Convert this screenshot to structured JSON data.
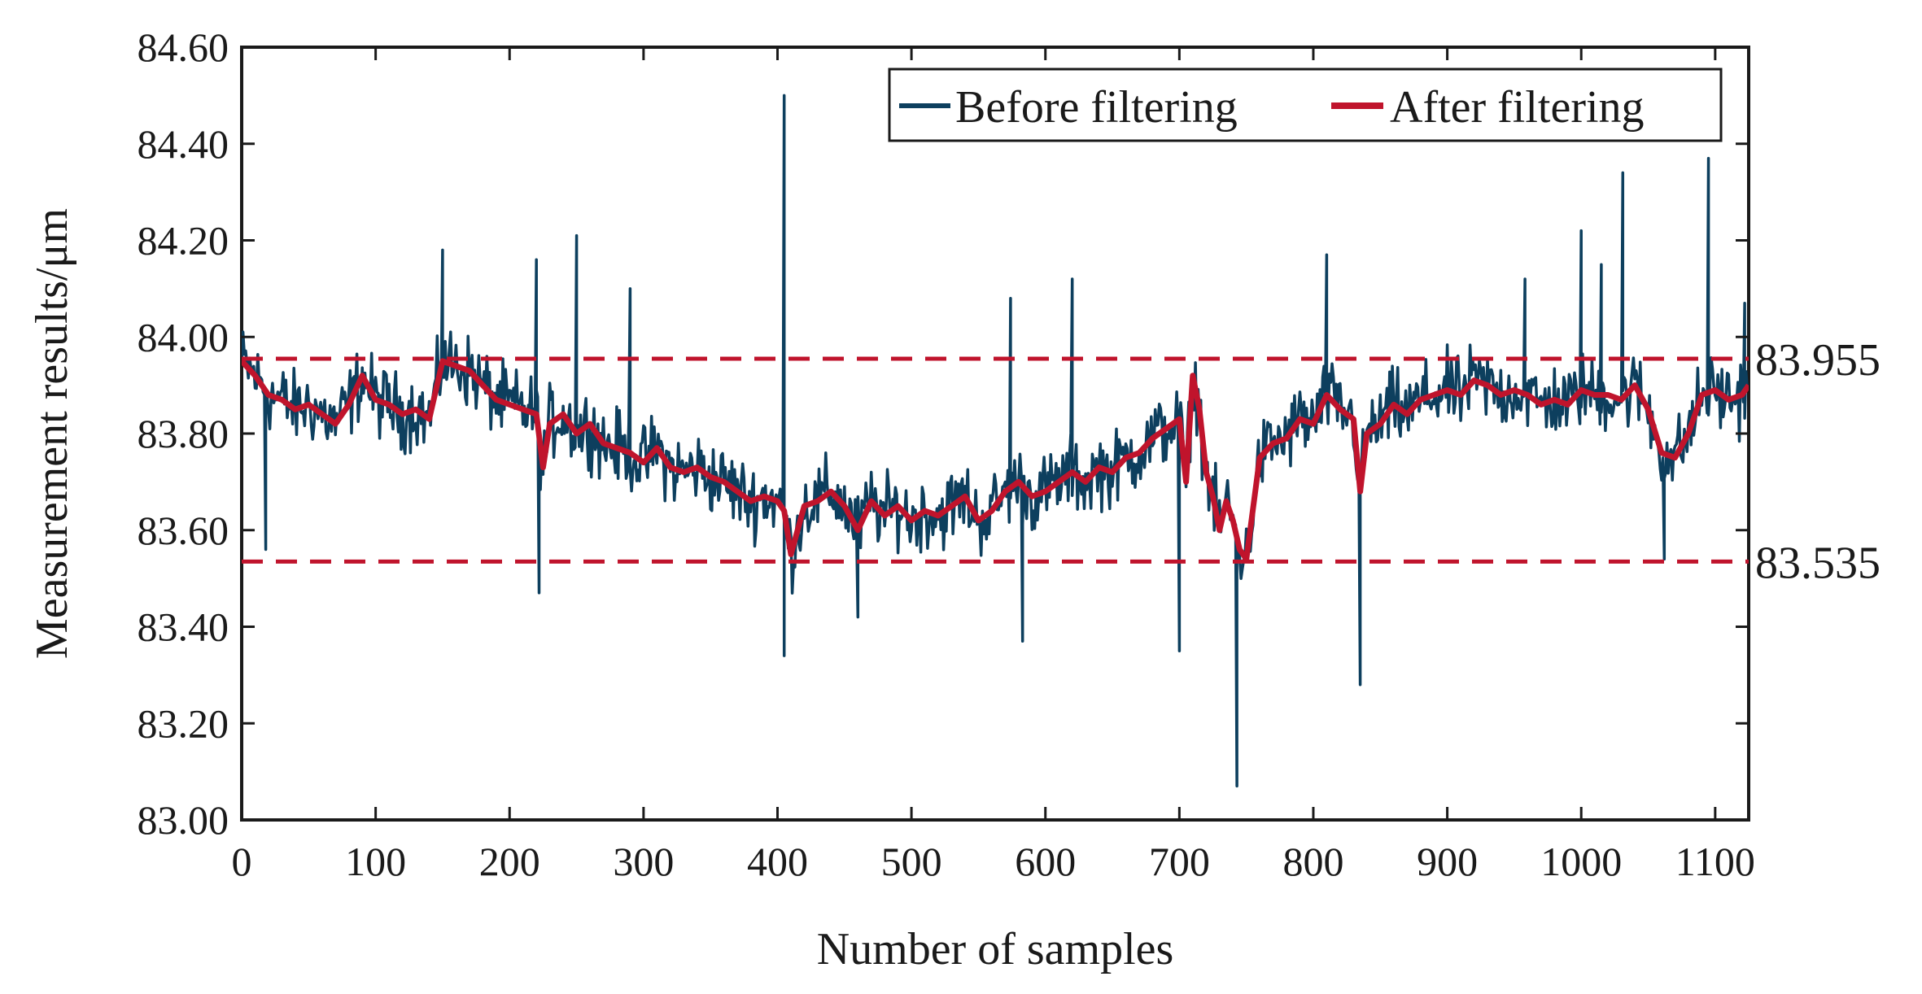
{
  "chart_data": {
    "type": "line",
    "title": "",
    "xlabel": "Number of samples",
    "ylabel": "Measurement results/μm",
    "xlim": [
      0,
      1125
    ],
    "ylim": [
      83.0,
      84.6
    ],
    "xticks": [
      0,
      100,
      200,
      300,
      400,
      500,
      600,
      700,
      800,
      900,
      1000,
      1100
    ],
    "xtick_labels": [
      "0",
      "100",
      "200",
      "300",
      "400",
      "500",
      "600",
      "700",
      "800",
      "900",
      "1000",
      "1100"
    ],
    "yticks": [
      83.0,
      83.2,
      83.4,
      83.6,
      83.8,
      84.0,
      84.2,
      84.4,
      84.6
    ],
    "ytick_labels": [
      "83.00",
      "83.20",
      "83.40",
      "83.60",
      "83.80",
      "84.00",
      "84.20",
      "84.40",
      "84.60"
    ],
    "grid": false,
    "legend_position": "top-right",
    "colors": {
      "before": "#0d3f5e",
      "after": "#c0142c",
      "axis": "#1a1a1a"
    },
    "series": [
      {
        "name": "Before filtering",
        "noise_amplitude": 0.07,
        "spikes": [
          {
            "x": 405,
            "y": 84.5
          },
          {
            "x": 405,
            "y": 83.34
          },
          {
            "x": 743,
            "y": 83.07
          },
          {
            "x": 835,
            "y": 83.28
          },
          {
            "x": 1095,
            "y": 84.37
          },
          {
            "x": 1031,
            "y": 84.34
          },
          {
            "x": 1000,
            "y": 84.22
          },
          {
            "x": 250,
            "y": 84.21
          },
          {
            "x": 220,
            "y": 84.16
          },
          {
            "x": 810,
            "y": 84.17
          },
          {
            "x": 620,
            "y": 84.12
          },
          {
            "x": 222,
            "y": 83.47
          },
          {
            "x": 700,
            "y": 83.35
          },
          {
            "x": 574,
            "y": 84.08
          },
          {
            "x": 583,
            "y": 83.37
          },
          {
            "x": 460,
            "y": 83.42
          },
          {
            "x": 18,
            "y": 83.56
          },
          {
            "x": 1062,
            "y": 83.54
          },
          {
            "x": 1122,
            "y": 84.07
          },
          {
            "x": 150,
            "y": 84.18
          },
          {
            "x": 290,
            "y": 84.1
          },
          {
            "x": 958,
            "y": 84.12
          },
          {
            "x": 1015,
            "y": 84.15
          }
        ]
      },
      {
        "name": "After filtering",
        "x": [
          0,
          10,
          20,
          30,
          40,
          50,
          60,
          70,
          80,
          90,
          100,
          110,
          120,
          130,
          140,
          150,
          160,
          170,
          180,
          190,
          200,
          210,
          220,
          225,
          230,
          240,
          250,
          260,
          270,
          280,
          290,
          300,
          310,
          320,
          330,
          340,
          350,
          360,
          370,
          380,
          390,
          400,
          405,
          410,
          420,
          430,
          440,
          450,
          460,
          470,
          480,
          490,
          500,
          510,
          520,
          530,
          540,
          550,
          560,
          570,
          580,
          590,
          600,
          610,
          620,
          630,
          640,
          650,
          660,
          670,
          680,
          690,
          700,
          705,
          710,
          715,
          720,
          725,
          730,
          735,
          740,
          745,
          750,
          760,
          770,
          780,
          790,
          800,
          810,
          820,
          830,
          835,
          840,
          850,
          860,
          870,
          880,
          890,
          900,
          910,
          920,
          930,
          940,
          950,
          960,
          970,
          980,
          990,
          1000,
          1010,
          1020,
          1030,
          1040,
          1050,
          1060,
          1070,
          1080,
          1090,
          1100,
          1110,
          1120,
          1125
        ],
        "values": [
          83.95,
          83.92,
          83.88,
          83.87,
          83.85,
          83.86,
          83.84,
          83.82,
          83.86,
          83.92,
          83.87,
          83.86,
          83.84,
          83.85,
          83.83,
          83.95,
          83.94,
          83.93,
          83.9,
          83.87,
          83.86,
          83.85,
          83.84,
          83.73,
          83.82,
          83.84,
          83.8,
          83.82,
          83.78,
          83.77,
          83.76,
          83.74,
          83.77,
          83.73,
          83.72,
          83.73,
          83.71,
          83.7,
          83.68,
          83.66,
          83.67,
          83.66,
          83.64,
          83.55,
          83.65,
          83.66,
          83.68,
          83.65,
          83.6,
          83.66,
          83.63,
          83.65,
          83.62,
          83.64,
          83.63,
          83.65,
          83.67,
          83.62,
          83.64,
          83.68,
          83.7,
          83.67,
          83.68,
          83.7,
          83.72,
          83.7,
          83.73,
          83.72,
          83.75,
          83.76,
          83.79,
          83.81,
          83.83,
          83.7,
          83.92,
          83.85,
          83.72,
          83.67,
          83.6,
          83.66,
          83.62,
          83.56,
          83.54,
          83.75,
          83.78,
          83.79,
          83.83,
          83.82,
          83.88,
          83.85,
          83.83,
          83.68,
          83.8,
          83.82,
          83.86,
          83.84,
          83.87,
          83.88,
          83.89,
          83.88,
          83.91,
          83.9,
          83.88,
          83.89,
          83.88,
          83.86,
          83.87,
          83.86,
          83.89,
          83.88,
          83.88,
          83.87,
          83.9,
          83.85,
          83.76,
          83.75,
          83.8,
          83.88,
          83.89,
          83.87,
          83.88,
          83.9
        ]
      }
    ],
    "reference_lines": [
      {
        "value": 83.955,
        "label": "83.955"
      },
      {
        "value": 83.535,
        "label": "83.535"
      }
    ]
  }
}
